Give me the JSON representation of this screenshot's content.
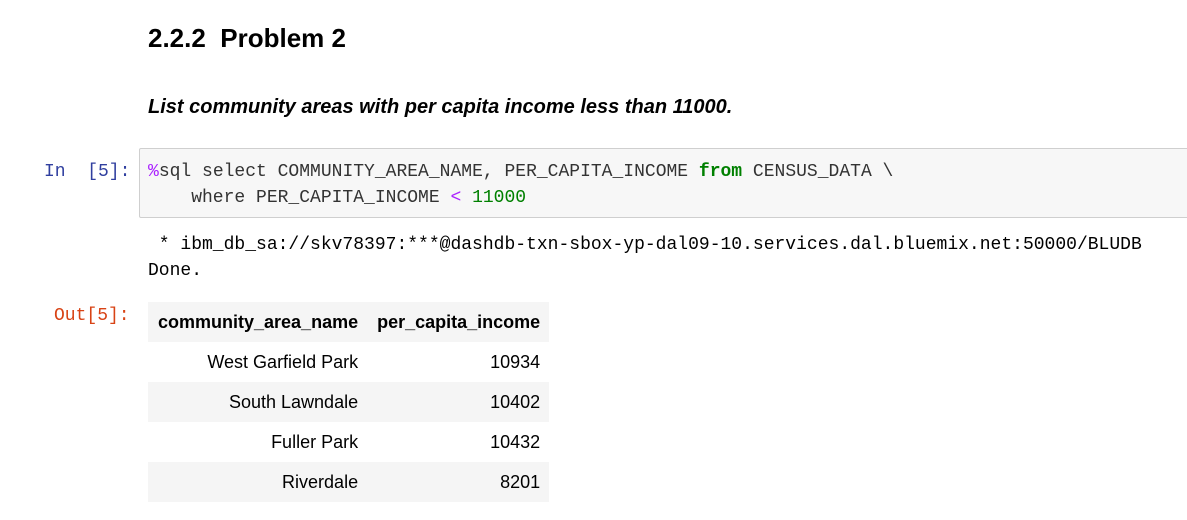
{
  "heading": "2.2.2  Problem 2",
  "subheading": "List community areas with per capita income less than 11000.",
  "input_prompt": "In  [5]:",
  "code": {
    "line1": {
      "magic": "%",
      "part1": "sql select COMMUNITY_AREA_NAME, PER_CAPITA_INCOME ",
      "keyword": "from",
      "part2": " CENSUS_DATA \\"
    },
    "line2": {
      "part1": "    where PER_CAPITA_INCOME ",
      "operator": "<",
      "space": " ",
      "number": "11000"
    }
  },
  "stdout": {
    "line1": " * ibm_db_sa://skv78397:***@dashdb-txn-sbox-yp-dal09-10.services.dal.bluemix.net:50000/BLUDB",
    "line2": "Done."
  },
  "output_prompt": "Out[5]:",
  "table": {
    "headers": [
      "community_area_name",
      "per_capita_income"
    ],
    "rows": [
      [
        "West Garfield Park",
        "10934"
      ],
      [
        "South Lawndale",
        "10402"
      ],
      [
        "Fuller Park",
        "10432"
      ],
      [
        "Riverdale",
        "8201"
      ]
    ]
  },
  "colors": {
    "in_prompt": "#303f9f",
    "out_prompt": "#d84315",
    "code_background": "#f7f7f7",
    "code_border": "#cfcfcf",
    "sql_magic": "#aa22ff",
    "sql_keyword": "#008000",
    "table_stripe": "#f5f5f5"
  }
}
